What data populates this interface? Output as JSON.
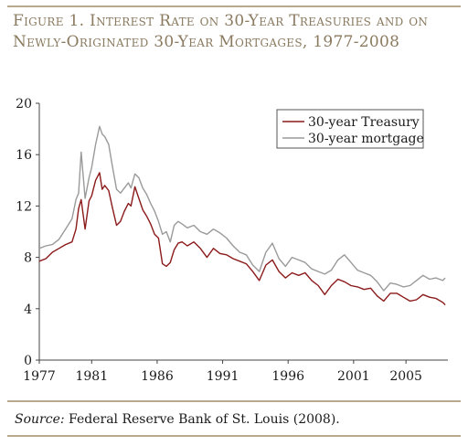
{
  "figure": {
    "title": "Figure 1. Interest Rate on 30-Year Treasuries and on Newly-Originated 30-Year Mortgages, 1977-2008",
    "source_label": "Source:",
    "source_text": " Federal Reserve Bank of St. Louis (2008)."
  },
  "chart_data": {
    "type": "line",
    "title": "",
    "xlabel": "",
    "ylabel": "",
    "xlim": [
      1977,
      2008.2
    ],
    "ylim": [
      0,
      20
    ],
    "x_ticks": [
      1977,
      1981,
      1986,
      1991,
      1996,
      2001,
      2005
    ],
    "y_ticks": [
      0,
      4,
      8,
      12,
      16,
      20
    ],
    "grid": false,
    "legend_position": "top-right",
    "colors": {
      "treasury": "#8b1a1a",
      "mortgage": "#9a9a9a",
      "axis": "#444444"
    },
    "x": [
      1977.0,
      1977.5,
      1978.0,
      1978.5,
      1979.0,
      1979.5,
      1979.8,
      1980.0,
      1980.2,
      1980.5,
      1980.8,
      1981.0,
      1981.3,
      1981.6,
      1981.8,
      1982.0,
      1982.3,
      1982.6,
      1982.9,
      1983.2,
      1983.5,
      1983.8,
      1984.0,
      1984.3,
      1984.6,
      1984.9,
      1985.2,
      1985.5,
      1985.8,
      1986.1,
      1986.4,
      1986.7,
      1987.0,
      1987.3,
      1987.6,
      1987.9,
      1988.3,
      1988.8,
      1989.3,
      1989.8,
      1990.3,
      1990.8,
      1991.3,
      1991.8,
      1992.3,
      1992.8,
      1993.3,
      1993.8,
      1994.3,
      1994.8,
      1995.3,
      1995.8,
      1996.3,
      1996.8,
      1997.3,
      1997.8,
      1998.3,
      1998.8,
      1999.3,
      1999.8,
      2000.3,
      2000.8,
      2001.3,
      2001.8,
      2002.3,
      2002.8,
      2003.3,
      2003.8,
      2004.3,
      2004.8,
      2005.3,
      2005.8,
      2006.3,
      2006.8,
      2007.3,
      2007.8,
      2008.0
    ],
    "series": [
      {
        "name": "30-year Treasury",
        "values": [
          7.7,
          7.9,
          8.4,
          8.7,
          9.0,
          9.2,
          10.2,
          11.8,
          12.5,
          10.2,
          12.4,
          12.8,
          14.0,
          14.6,
          13.3,
          13.6,
          13.2,
          11.8,
          10.5,
          10.8,
          11.6,
          12.2,
          12.0,
          13.5,
          12.6,
          11.7,
          11.2,
          10.6,
          9.8,
          9.5,
          7.5,
          7.3,
          7.6,
          8.6,
          9.1,
          9.2,
          8.9,
          9.2,
          8.7,
          8.0,
          8.7,
          8.3,
          8.2,
          7.9,
          7.7,
          7.5,
          6.9,
          6.2,
          7.4,
          7.8,
          6.9,
          6.4,
          6.8,
          6.6,
          6.8,
          6.2,
          5.8,
          5.1,
          5.8,
          6.3,
          6.1,
          5.8,
          5.7,
          5.5,
          5.6,
          5.0,
          4.6,
          5.2,
          5.2,
          4.9,
          4.6,
          4.7,
          5.1,
          4.9,
          4.8,
          4.5,
          4.3
        ]
      },
      {
        "name": "30-year mortgage",
        "values": [
          8.7,
          8.9,
          9.0,
          9.4,
          10.2,
          11.0,
          12.5,
          13.0,
          16.2,
          12.6,
          14.2,
          15.0,
          16.8,
          18.2,
          17.6,
          17.4,
          16.8,
          15.0,
          13.3,
          13.0,
          13.4,
          13.8,
          13.4,
          14.5,
          14.2,
          13.4,
          12.9,
          12.2,
          11.6,
          10.8,
          9.8,
          10.0,
          9.2,
          10.5,
          10.8,
          10.6,
          10.3,
          10.5,
          10.0,
          9.8,
          10.2,
          9.9,
          9.5,
          8.9,
          8.4,
          8.2,
          7.4,
          6.9,
          8.4,
          9.1,
          7.9,
          7.3,
          8.0,
          7.8,
          7.6,
          7.1,
          6.9,
          6.7,
          7.0,
          7.8,
          8.2,
          7.6,
          7.0,
          6.8,
          6.6,
          6.1,
          5.4,
          6.0,
          5.9,
          5.7,
          5.8,
          6.2,
          6.6,
          6.3,
          6.4,
          6.2,
          6.4
        ]
      }
    ]
  }
}
